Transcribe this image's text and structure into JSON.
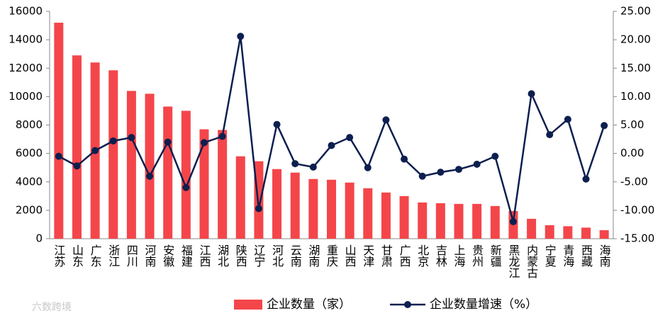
{
  "chart_data": {
    "type": "bar-line",
    "categories": [
      "江苏",
      "山东",
      "广东",
      "浙江",
      "四川",
      "河南",
      "安徽",
      "福建",
      "江西",
      "湖北",
      "陕西",
      "辽宁",
      "河北",
      "云南",
      "湖南",
      "重庆",
      "山西",
      "天津",
      "甘肃",
      "广西",
      "北京",
      "吉林",
      "上海",
      "贵州",
      "新疆",
      "黑龙江",
      "内蒙古",
      "宁夏",
      "青海",
      "西藏",
      "海南"
    ],
    "series": [
      {
        "name": "企业数量（家）",
        "type": "bar",
        "color": "#f4464a",
        "values": [
          15200,
          12900,
          12400,
          11850,
          10400,
          10200,
          9300,
          9000,
          7700,
          7650,
          5800,
          5450,
          4900,
          4650,
          4200,
          4150,
          3950,
          3550,
          3250,
          3000,
          2550,
          2500,
          2450,
          2450,
          2300,
          1950,
          1400,
          950,
          880,
          780,
          600
        ]
      },
      {
        "name": "企业数量增速（%）",
        "type": "line",
        "axis": "y2",
        "color": "#0d1f4f",
        "values": [
          -0.5,
          -2.2,
          0.5,
          2.2,
          2.8,
          -4.0,
          2.0,
          -6.0,
          1.9,
          3.0,
          20.6,
          -9.7,
          5.1,
          -1.8,
          -2.4,
          1.4,
          2.8,
          -2.5,
          5.9,
          -1.0,
          -4.0,
          -3.3,
          -2.8,
          -1.9,
          -0.5,
          -12.0,
          10.5,
          3.3,
          6.0,
          -4.5,
          4.9
        ]
      }
    ],
    "ylim": [
      0,
      16000
    ],
    "yticks": [
      0,
      2000,
      4000,
      6000,
      8000,
      10000,
      12000,
      14000,
      16000
    ],
    "y2lim": [
      -15,
      25
    ],
    "y2ticks": [
      {
        "value": -15,
        "label": "-15.00"
      },
      {
        "value": -10,
        "label": "-10.00"
      },
      {
        "value": -5,
        "label": "-5.00"
      },
      {
        "value": 0,
        "label": "0.00"
      },
      {
        "value": 5,
        "label": "5.00"
      },
      {
        "value": 10,
        "label": "10.00"
      },
      {
        "value": 15,
        "label": "15.00"
      },
      {
        "value": 20,
        "label": "20.00"
      },
      {
        "value": 25,
        "label": "25.00"
      }
    ],
    "legend": "bottom",
    "watermark": "六数跨境"
  }
}
